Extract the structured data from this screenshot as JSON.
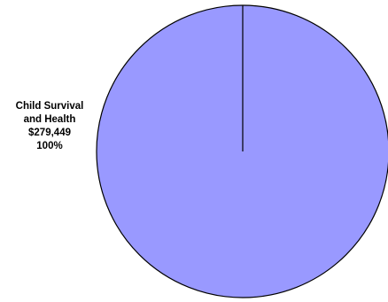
{
  "chart_data": {
    "type": "pie",
    "title": "",
    "slices": [
      {
        "label_line1": "Child Survival",
        "label_line2": "and Health",
        "value_text": "$279,449",
        "value": 279449,
        "percent_text": "100%",
        "percent": 100,
        "color": "#9999ff"
      }
    ],
    "legend": "none",
    "outline_color": "#000000"
  }
}
